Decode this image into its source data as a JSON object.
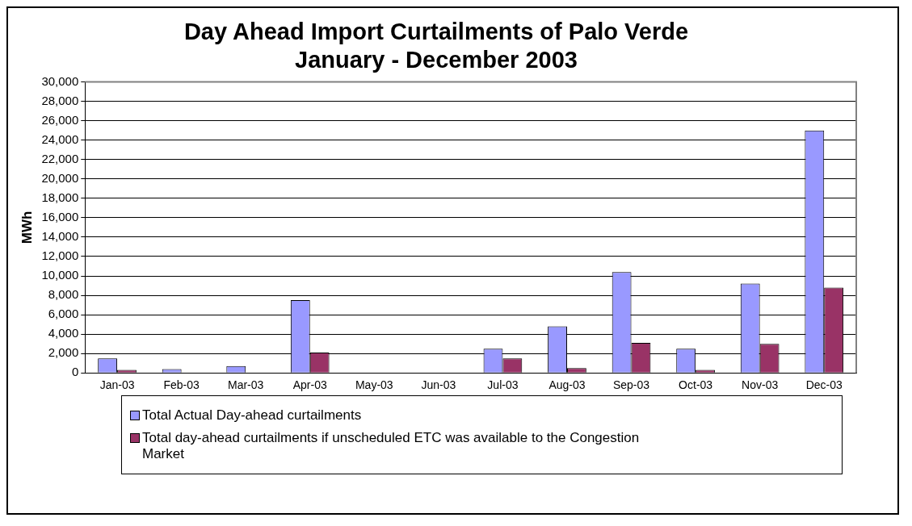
{
  "chart_data": {
    "type": "bar",
    "title": "Day Ahead Import Curtailments of Palo Verde",
    "subtitle": "January - December 2003",
    "ylabel": "MWh",
    "categories": [
      "Jan-03",
      "Feb-03",
      "Mar-03",
      "Apr-03",
      "May-03",
      "Jun-03",
      "Jul-03",
      "Aug-03",
      "Sep-03",
      "Oct-03",
      "Nov-03",
      "Dec-03"
    ],
    "series": [
      {
        "name": "Total Actual Day-ahead curtailments",
        "color": "#9999ff",
        "values": [
          1500,
          400,
          700,
          7500,
          0,
          0,
          2500,
          4800,
          10400,
          2500,
          9200,
          25000
        ]
      },
      {
        "name": "Total day-ahead curtailments if unscheduled ETC was available to the Congestion Market",
        "color": "#993366",
        "values": [
          300,
          0,
          0,
          2100,
          0,
          0,
          1500,
          500,
          3100,
          300,
          3000,
          8800
        ]
      }
    ],
    "ylim": [
      0,
      30000
    ],
    "yticks": [
      0,
      {
        "value": 2000,
        "label": "2,000"
      },
      {
        "value": 4000,
        "label": "4,000"
      },
      {
        "value": 6000,
        "label": "6,000"
      },
      {
        "value": 8000,
        "label": "8,000"
      },
      {
        "value": 10000,
        "label": "10,000"
      },
      {
        "value": 12000,
        "label": "12,000"
      },
      {
        "value": 14000,
        "label": "14,000"
      },
      {
        "value": 16000,
        "label": "16,000"
      },
      {
        "value": 18000,
        "label": "18,000"
      },
      {
        "value": 20000,
        "label": "20,000"
      },
      {
        "value": 22000,
        "label": "22,000"
      },
      {
        "value": 24000,
        "label": "24,000"
      },
      {
        "value": 26000,
        "label": "26,000"
      },
      {
        "value": 28000,
        "label": "28,000"
      },
      {
        "value": 30000,
        "label": "30,000"
      }
    ],
    "grid": "y",
    "legend": "bottom"
  }
}
